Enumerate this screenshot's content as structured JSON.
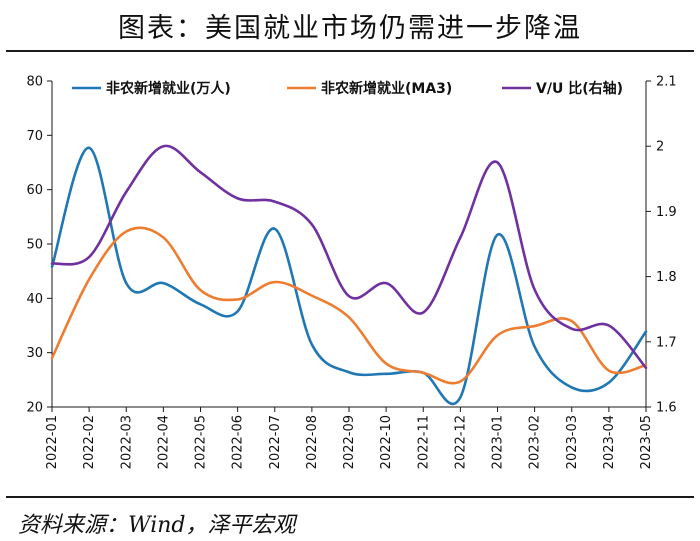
{
  "title": "图表：美国就业市场仍需进一步降温",
  "source": "资料来源：Wind，泽平宏观",
  "colors": {
    "nfp": "#1f77b4",
    "ma3": "#ed7d31",
    "vu": "#7030a0",
    "axis": "#1a1a1a"
  },
  "chart_data": {
    "type": "line",
    "title": "图表：美国就业市场仍需进一步降温",
    "x": [
      "2022-01",
      "2022-02",
      "2022-03",
      "2022-04",
      "2022-05",
      "2022-06",
      "2022-07",
      "2022-08",
      "2022-09",
      "2022-10",
      "2022-11",
      "2022-12",
      "2023-01",
      "2023-02",
      "2023-03",
      "2023-04",
      "2023-05"
    ],
    "ylim": [
      20,
      80
    ],
    "yticks": [
      20,
      30,
      40,
      50,
      60,
      70,
      80
    ],
    "y2lim": [
      1.6,
      2.1
    ],
    "y2ticks": [
      "1.6",
      "1.7",
      "1.8",
      "1.9",
      "2",
      "2.1"
    ],
    "legend_position": "top",
    "grid": false,
    "series": [
      {
        "name": "非农新增就业(万人)",
        "axis": "left",
        "values": [
          45.8,
          67.7,
          42.8,
          42.8,
          38.9,
          37.6,
          52.8,
          31.5,
          26.4,
          26.1,
          26.3,
          21.8,
          51.7,
          31.1,
          23.6,
          24.5,
          33.9
        ]
      },
      {
        "name": "非农新增就业(MA3)",
        "axis": "left",
        "values": [
          29.0,
          43.5,
          52.3,
          51.2,
          41.5,
          39.8,
          43.0,
          40.5,
          36.5,
          28.0,
          26.3,
          24.7,
          33.2,
          34.9,
          35.8,
          26.7,
          27.7
        ]
      },
      {
        "name": "V/U 比(右轴)",
        "axis": "right",
        "values": [
          1.82,
          1.83,
          1.93,
          2.0,
          1.96,
          1.92,
          1.915,
          1.88,
          1.77,
          1.79,
          1.745,
          1.86,
          1.975,
          1.78,
          1.72,
          1.725,
          1.66
        ]
      }
    ]
  }
}
